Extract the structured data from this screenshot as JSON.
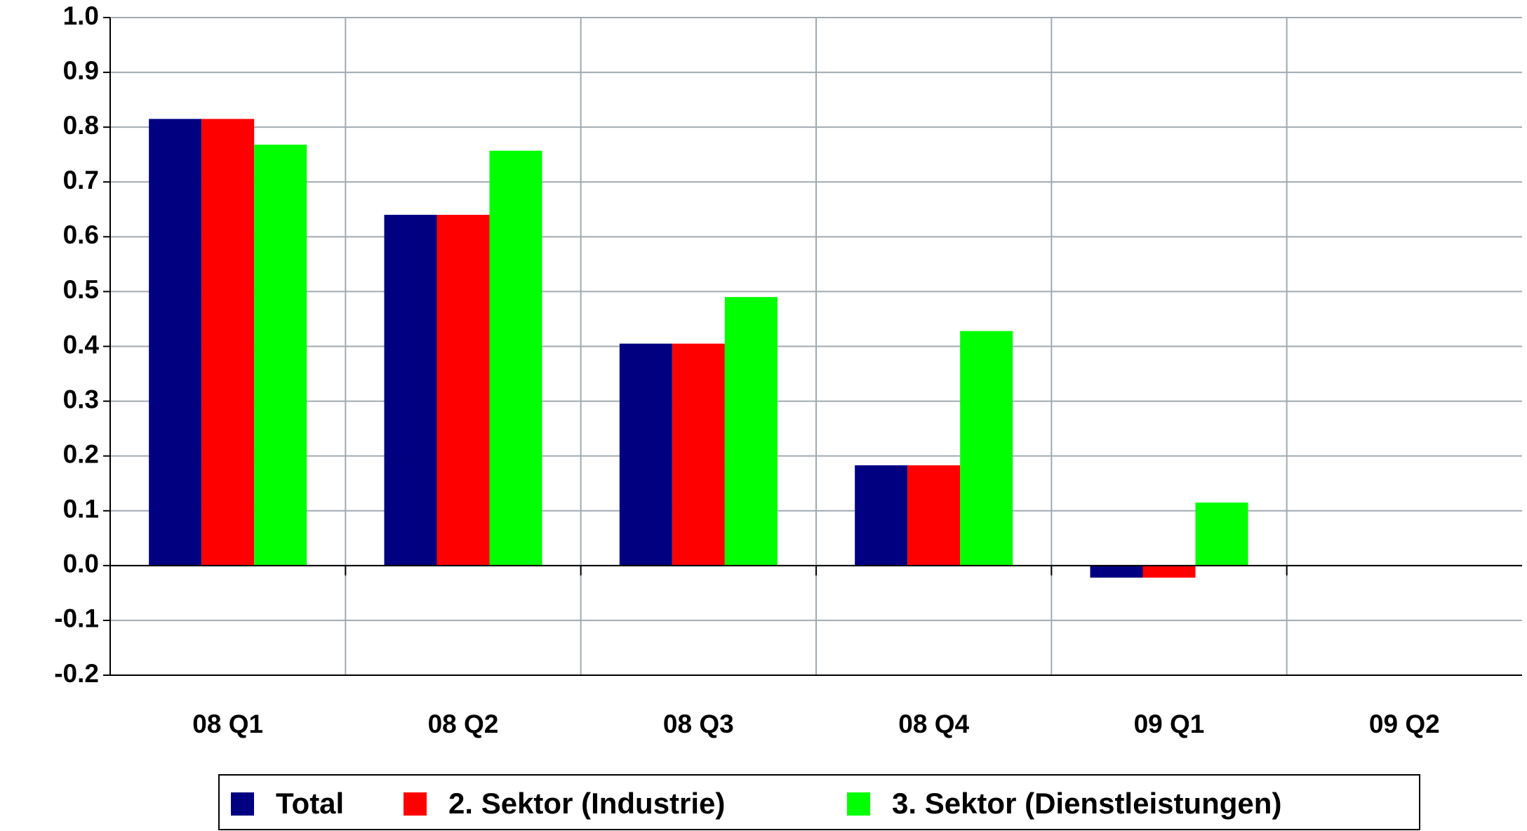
{
  "chart_data": {
    "type": "bar",
    "categories": [
      "08 Q1",
      "08 Q2",
      "08 Q3",
      "08 Q4",
      "09 Q1",
      "09 Q2"
    ],
    "series": [
      {
        "name": "Total",
        "color": "#000080",
        "values": [
          0.815,
          0.64,
          0.405,
          0.183,
          -0.022,
          null
        ]
      },
      {
        "name": "2. Sektor (Industrie)",
        "color": "#ff0000",
        "values": [
          0.815,
          0.64,
          0.405,
          0.183,
          -0.022,
          null
        ]
      },
      {
        "name": "3. Sektor (Dienstleistungen)",
        "color": "#00ff00",
        "values": [
          0.768,
          0.757,
          0.49,
          0.428,
          0.115,
          null
        ]
      }
    ],
    "ylim": [
      -0.2,
      1.0
    ],
    "yticks": [
      -0.2,
      -0.1,
      {
        "value": 0,
        "label": "0.0"
      },
      0.1,
      0.2,
      0.3,
      0.4,
      0.5,
      0.6,
      0.7,
      0.8,
      0.9,
      {
        "value": 1,
        "label": "1.0"
      }
    ],
    "grid": true,
    "legend": "bottom"
  }
}
